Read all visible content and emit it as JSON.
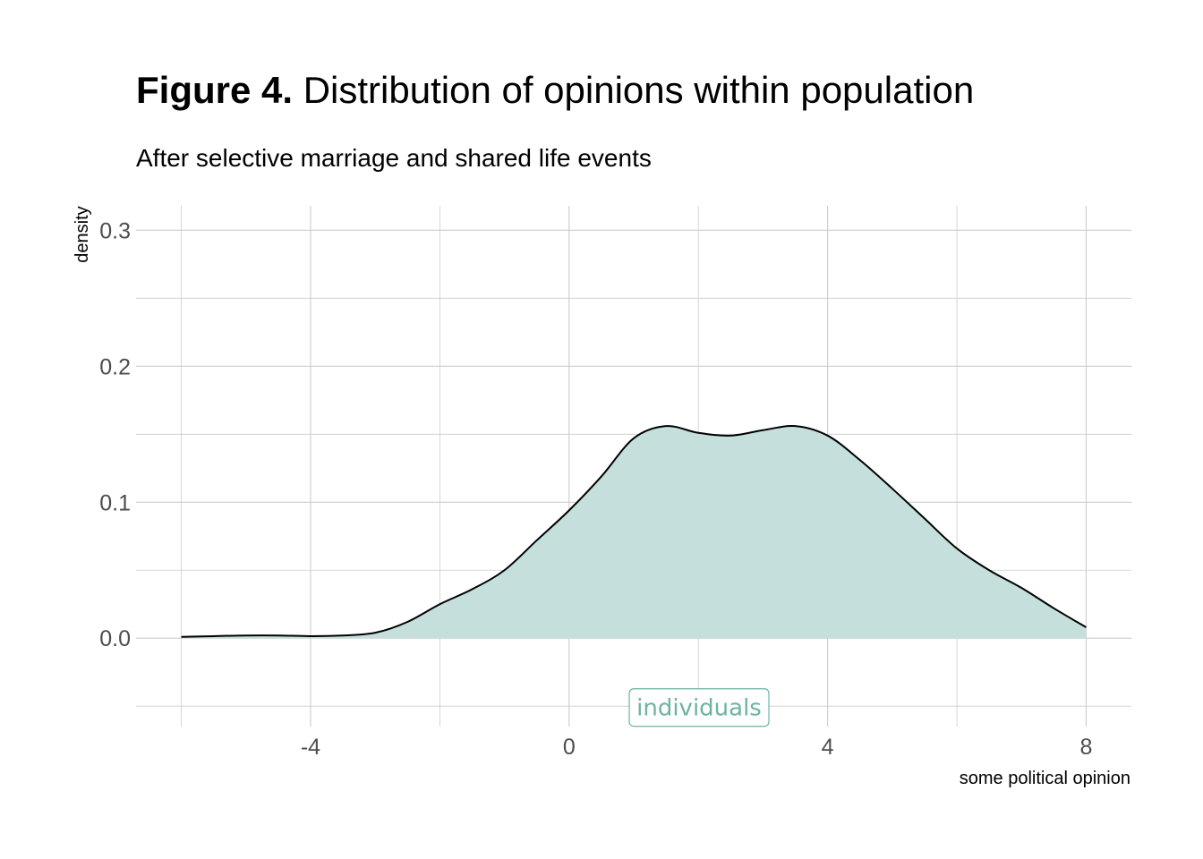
{
  "figure": {
    "title_prefix": "Figure 4.",
    "title_rest": " Distribution of opinions within population",
    "subtitle": "After selective marriage and shared life events"
  },
  "colors": {
    "fill": "#c5e0dc",
    "line": "#000000",
    "label": "#6db3a3",
    "grid": "#cccccc"
  },
  "chart_data": {
    "type": "area",
    "title": "Figure 4. Distribution of opinions within population",
    "subtitle": "After selective marriage and shared life events",
    "xlabel": "some political opinion",
    "ylabel": "density",
    "xlim": [
      -6.7,
      8.7
    ],
    "ylim": [
      -0.065,
      0.318
    ],
    "x_ticks": [
      -4,
      0,
      4,
      8
    ],
    "x_tick_labels": [
      "-4",
      "0",
      "4",
      "8"
    ],
    "y_ticks": [
      0.0,
      0.1,
      0.2,
      0.3
    ],
    "y_tick_labels": [
      "0.0",
      "0.1",
      "0.2",
      "0.3"
    ],
    "grid": true,
    "annotation": {
      "text": "individuals",
      "x": 1.0,
      "y": -0.051
    },
    "series": [
      {
        "x": [
          -6,
          -5.5,
          -5,
          -4.5,
          -4,
          -3.5,
          -3,
          -2.5,
          -2,
          -1.5,
          -1,
          -0.5,
          0,
          0.5,
          1,
          1.5,
          2,
          2.5,
          3,
          3.5,
          4,
          4.5,
          5,
          5.5,
          6,
          6.5,
          7,
          7.5,
          8
        ],
        "values": [
          0.001,
          0.0015,
          0.002,
          0.002,
          0.0015,
          0.002,
          0.004,
          0.012,
          0.025,
          0.036,
          0.05,
          0.072,
          0.094,
          0.119,
          0.147,
          0.156,
          0.151,
          0.149,
          0.153,
          0.156,
          0.149,
          0.131,
          0.11,
          0.088,
          0.066,
          0.05,
          0.037,
          0.022,
          0.008
        ]
      }
    ]
  }
}
